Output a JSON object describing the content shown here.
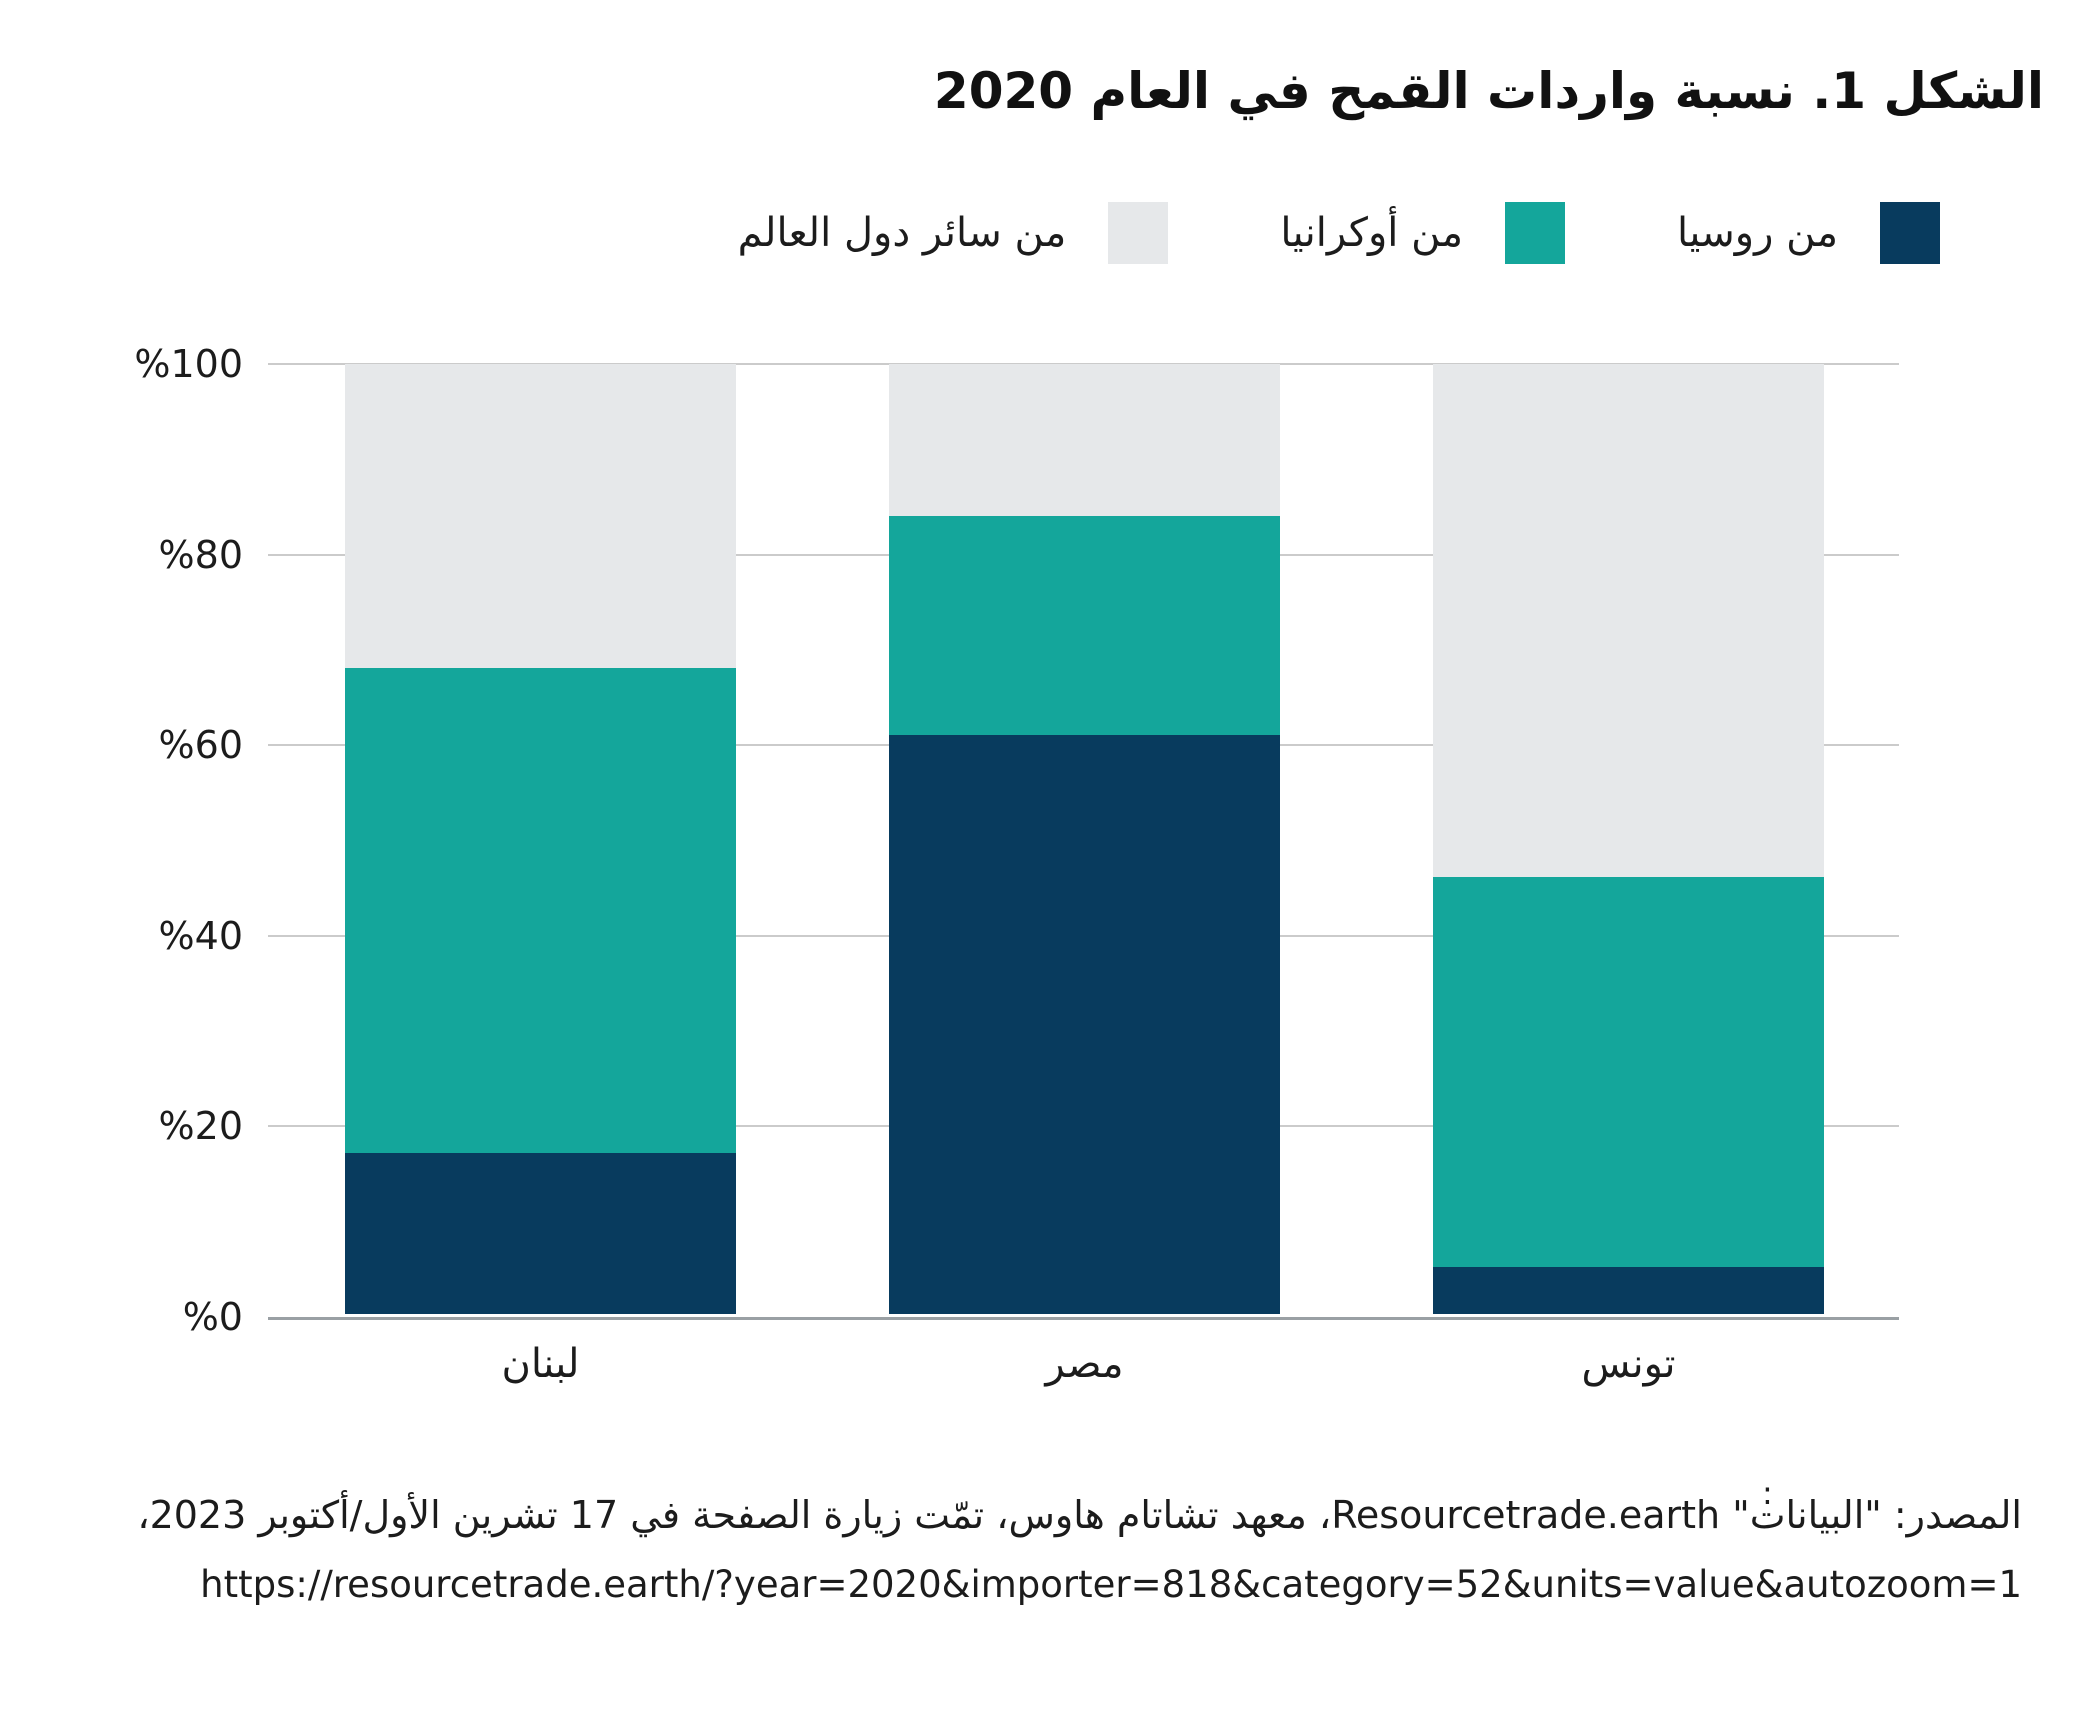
{
  "title": "الشكل 1. نسبة واردات القمح في العام 2020",
  "legend": {
    "items": [
      {
        "label": "من روسيا",
        "color": "#083b5e"
      },
      {
        "label": "من أوكرانيا",
        "color": "#14a69b"
      },
      {
        "label": "من سائر دول العالم",
        "color": "#e6e8ea"
      }
    ]
  },
  "chart_data": {
    "type": "bar",
    "stacked": true,
    "title": "الشكل 1. نسبة واردات القمح في العام 2020",
    "categories": [
      "لبنان",
      "مصر",
      "تونس"
    ],
    "series": [
      {
        "name": "من روسيا",
        "color": "#083b5e",
        "values": [
          17,
          61,
          5
        ]
      },
      {
        "name": "من أوكرانيا",
        "color": "#14a69b",
        "values": [
          51,
          23,
          41
        ]
      },
      {
        "name": "من سائر دول العالم",
        "color": "#e6e8ea",
        "values": [
          32,
          16,
          54
        ]
      }
    ],
    "ylabel": "",
    "xlabel": "",
    "ylim": [
      0,
      100
    ],
    "yticks": [
      {
        "value": 100,
        "label": "%100"
      },
      {
        "value": 80,
        "label": "%80"
      },
      {
        "value": 60,
        "label": "%60"
      },
      {
        "value": 40,
        "label": "%40"
      },
      {
        "value": 20,
        "label": "%20"
      },
      {
        "value": 0,
        "label": "%0"
      }
    ],
    "grid": true,
    "legend_position": "top-right"
  },
  "footnote_mark": ":",
  "source": {
    "line": "المصدر: \"البيانات\" Resourcetrade.earth، معهد تشاتام هاوس، تمّت زيارة الصفحة في 17 تشرين الأول/أكتوبر 2023،",
    "url": "https://resourcetrade.earth/?year=2020&importer=818&category=52&units=value&autozoom=1"
  },
  "colors": {
    "russia": "#083b5e",
    "ukraine": "#14a69b",
    "rest_of_world": "#e6e8ea",
    "gridline": "#cbcbcb",
    "axis_line": "#9aa0a4",
    "text": "#1c1c1c"
  }
}
